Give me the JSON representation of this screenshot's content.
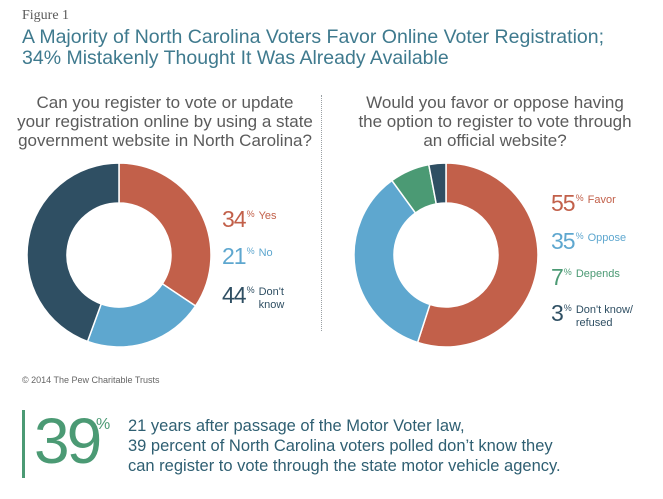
{
  "figure_label": "Figure 1",
  "title_line1": "A Majority of North Carolina Voters Favor Online Voter Registration;",
  "title_line2": "34% Mistakenly Thought It Was Already Available",
  "chart_data": [
    {
      "type": "pie",
      "title_lines": [
        "Can you register to vote or update",
        "your registration online by using a state",
        "government website in North Carolina?"
      ],
      "categories": [
        "Yes",
        "No",
        "Don't know"
      ],
      "values": [
        34,
        21,
        44
      ],
      "colors": [
        "#c2604a",
        "#5ea7cf",
        "#2f4f63"
      ],
      "legend": [
        {
          "value": "34",
          "label": "Yes",
          "label2": "",
          "color": "#c2604a"
        },
        {
          "value": "21",
          "label": "No",
          "label2": "",
          "color": "#5ea7cf"
        },
        {
          "value": "44",
          "label": "Don't",
          "label2": "know",
          "color": "#2f4f63"
        }
      ]
    },
    {
      "type": "pie",
      "title_lines": [
        "Would you favor or oppose having",
        "the option to register to vote through",
        "an official website?"
      ],
      "categories": [
        "Favor",
        "Oppose",
        "Depends",
        "Don't know/refused"
      ],
      "values": [
        55,
        35,
        7,
        3
      ],
      "colors": [
        "#c2604a",
        "#5ea7cf",
        "#4b9a74",
        "#2f4f63"
      ],
      "legend": [
        {
          "value": "55",
          "label": "Favor",
          "label2": "",
          "color": "#c2604a"
        },
        {
          "value": "35",
          "label": "Oppose",
          "label2": "",
          "color": "#5ea7cf"
        },
        {
          "value": "7",
          "label": "Depends",
          "label2": "",
          "color": "#4b9a74"
        },
        {
          "value": "3",
          "label": "Don't know/",
          "label2": "refused",
          "color": "#2f4f63"
        }
      ]
    }
  ],
  "percent_symbol": "%",
  "copyright": "© 2014 The Pew Charitable Trusts",
  "callout": {
    "number": "39",
    "percent": "%",
    "lines": [
      "21 years after passage of the Motor Voter law,",
      "39 percent of North Carolina voters polled don’t know they",
      "can register to vote through the state motor vehicle agency."
    ]
  }
}
